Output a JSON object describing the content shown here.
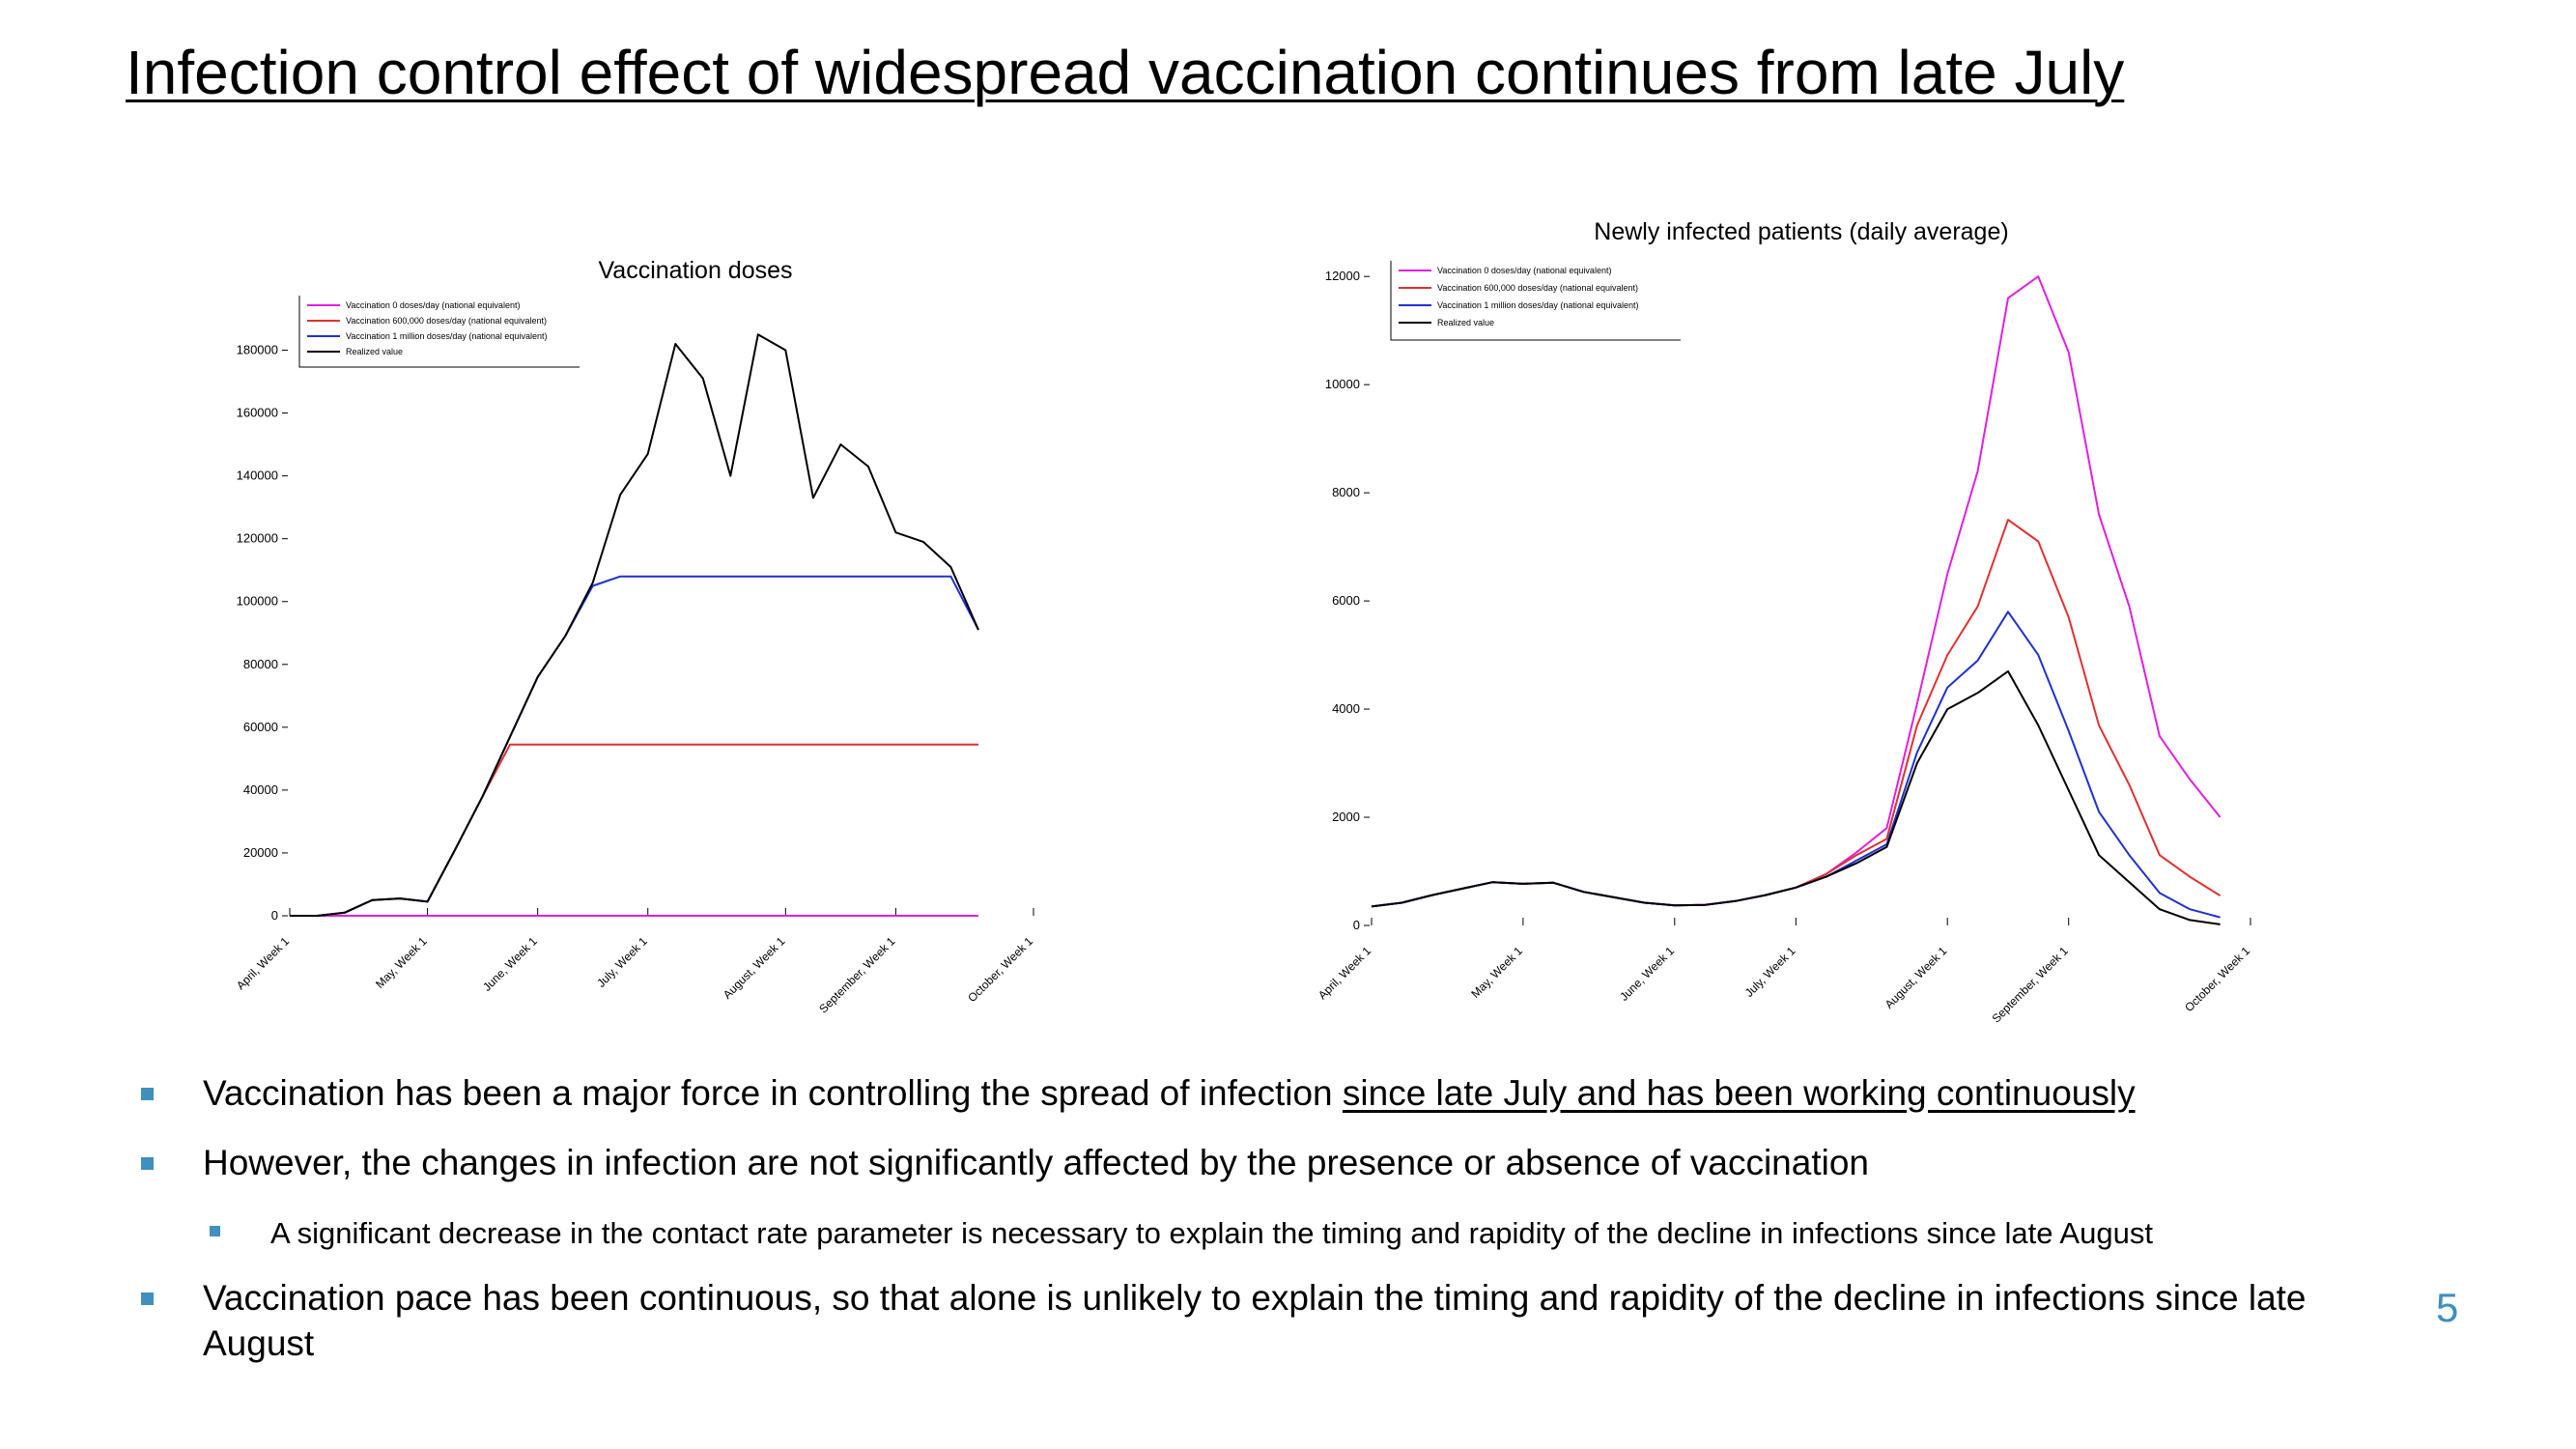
{
  "slide": {
    "title": "Infection control effect of widespread vaccination continues from late July",
    "page_number": "5",
    "accent_color": "#3f8fc0"
  },
  "bullets": [
    {
      "text": "Vaccination has been a major force in controlling the spread of infection ",
      "underlined": "since late July and has been working continuously"
    },
    {
      "text": "However, the changes in infection are not significantly affected by the presence or absence of vaccination"
    },
    {
      "text": "A significant decrease in the contact rate parameter is necessary to explain the timing and rapidity of the decline in infections since late August"
    },
    {
      "text": "Vaccination pace has been continuous, so that alone is unlikely to explain the timing and rapidity of the decline in infections since late August"
    }
  ],
  "chart_data": [
    {
      "type": "line",
      "title": "Vaccination doses",
      "ylim": [
        0,
        190000
      ],
      "yticks": [
        "0",
        "20000",
        "40000",
        "60000",
        "80000",
        "100000",
        "120000",
        "140000",
        "160000",
        "180000"
      ],
      "xticks": [
        {
          "label": "April, Week 1",
          "index": 0
        },
        {
          "label": "May, Week 1",
          "index": 5
        },
        {
          "label": "June, Week 1",
          "index": 9
        },
        {
          "label": "July, Week 1",
          "index": 13
        },
        {
          "label": "August, Week 1",
          "index": 18
        },
        {
          "label": "September, Week 1",
          "index": 22
        },
        {
          "label": "October, Week 1",
          "index": 27
        }
      ],
      "legend": {
        "position": "top-left"
      },
      "series": [
        {
          "name": "Vaccination 0 doses/day (national equivalent)",
          "color": "#e020e0",
          "values": [
            0,
            0,
            0,
            0,
            0,
            0,
            0,
            0,
            0,
            0,
            0,
            0,
            0,
            0,
            0,
            0,
            0,
            0,
            0,
            0,
            0,
            0,
            0,
            0,
            0,
            0
          ]
        },
        {
          "name": "Vaccination 600,000 doses/day (national equivalent)",
          "color": "#e03030",
          "values": [
            0,
            0,
            1000,
            5000,
            5500,
            4500,
            21000,
            38000,
            54500,
            54500,
            54500,
            54500,
            54500,
            54500,
            54500,
            54500,
            54500,
            54500,
            54500,
            54500,
            54500,
            54500,
            54500,
            54500,
            54500,
            54500
          ]
        },
        {
          "name": "Vaccination 1 million doses/day (national equivalent)",
          "color": "#2030d0",
          "values": [
            0,
            0,
            1000,
            5000,
            5500,
            4500,
            21000,
            38000,
            57000,
            76000,
            89000,
            105000,
            108000,
            108000,
            108000,
            108000,
            108000,
            108000,
            108000,
            108000,
            108000,
            108000,
            108000,
            108000,
            108000,
            91000
          ]
        },
        {
          "name": "Realized value",
          "color": "#000000",
          "values": [
            0,
            0,
            1000,
            5000,
            5500,
            4500,
            21000,
            38000,
            57000,
            76000,
            89000,
            106000,
            134000,
            147000,
            182000,
            171000,
            140000,
            185000,
            180000,
            133000,
            150000,
            143000,
            122000,
            119000,
            111000,
            91000
          ]
        }
      ]
    },
    {
      "type": "line",
      "title": "Newly infected patients (daily average)",
      "ylim": [
        0,
        12200
      ],
      "yticks": [
        "0",
        "2000",
        "4000",
        "6000",
        "8000",
        "10000",
        "12000"
      ],
      "xticks": [
        {
          "label": "April, Week 1",
          "index": 0
        },
        {
          "label": "May, Week 1",
          "index": 5
        },
        {
          "label": "June, Week 1",
          "index": 10
        },
        {
          "label": "July, Week 1",
          "index": 14
        },
        {
          "label": "August, Week 1",
          "index": 19
        },
        {
          "label": "September, Week 1",
          "index": 23
        },
        {
          "label": "October, Week 1",
          "index": 29
        }
      ],
      "legend": {
        "position": "top-left"
      },
      "series": [
        {
          "name": "Vaccination 0 doses/day (national equivalent)",
          "color": "#e020e0",
          "values": [
            350,
            420,
            560,
            680,
            800,
            770,
            790,
            620,
            520,
            420,
            370,
            380,
            450,
            560,
            700,
            950,
            1350,
            1800,
            4100,
            6500,
            8400,
            11600,
            12000,
            10600,
            7600,
            5900,
            3500,
            2700,
            2000
          ]
        },
        {
          "name": "Vaccination 600,000 doses/day (national equivalent)",
          "color": "#e03030",
          "values": [
            350,
            420,
            560,
            680,
            800,
            770,
            790,
            620,
            520,
            420,
            370,
            380,
            450,
            560,
            700,
            950,
            1300,
            1600,
            3700,
            5000,
            5900,
            7500,
            7100,
            5700,
            3700,
            2600,
            1300,
            900,
            550
          ]
        },
        {
          "name": "Vaccination 1 million doses/day (national equivalent)",
          "color": "#2030d0",
          "values": [
            350,
            420,
            560,
            680,
            800,
            770,
            790,
            620,
            520,
            420,
            370,
            380,
            450,
            560,
            700,
            900,
            1200,
            1500,
            3200,
            4400,
            4900,
            5800,
            5000,
            3600,
            2100,
            1300,
            600,
            300,
            150
          ]
        },
        {
          "name": "Realized value",
          "color": "#000000",
          "values": [
            350,
            420,
            560,
            680,
            800,
            770,
            790,
            620,
            520,
            420,
            370,
            380,
            450,
            560,
            700,
            900,
            1150,
            1450,
            3000,
            4000,
            4300,
            4700,
            3700,
            2500,
            1300,
            800,
            300,
            100,
            20
          ]
        }
      ]
    }
  ]
}
